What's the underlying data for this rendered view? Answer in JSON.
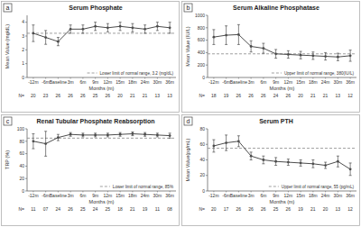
{
  "chart_data": [
    {
      "type": "line",
      "panel_label": "a",
      "title": "Serum Phosphate",
      "y_label": "Mean Value (mg/dL)",
      "x_label": "Months (m)",
      "categories": [
        "-12m",
        "-6m",
        "Baseline",
        "3m",
        "6m",
        "9m",
        "12m",
        "15m",
        "18m",
        "24m",
        "30m",
        "36m"
      ],
      "values": [
        3.2,
        2.9,
        2.6,
        3.5,
        3.5,
        3.7,
        3.6,
        3.7,
        3.6,
        3.5,
        3.7,
        3.6
      ],
      "errors": [
        0.6,
        0.5,
        0.3,
        0.3,
        0.3,
        0.3,
        0.3,
        0.3,
        0.3,
        0.3,
        0.3,
        0.4
      ],
      "color": "#4d4d4d",
      "marker": "circle",
      "ylim": [
        0,
        4.5
      ],
      "yticks": [
        0,
        1,
        2,
        3,
        4
      ],
      "grid": false,
      "reference_line": {
        "value": 3.2,
        "label": "Lower limit of normal range, 3.2 (mg/dL)"
      },
      "n_label": "N=",
      "n_values": [
        "20",
        "23",
        "26",
        "26",
        "26",
        "25",
        "26",
        "20",
        "21",
        "21",
        "13",
        "13"
      ]
    },
    {
      "type": "line",
      "panel_label": "b",
      "title": "Serum Alkaline Phosphatase",
      "y_label": "Mean Value (IU/L)",
      "x_label": "Months (m)",
      "categories": [
        "-12m",
        "-6m",
        "Baseline",
        "3m",
        "6m",
        "9m",
        "12m",
        "15m",
        "18m",
        "24m",
        "30m",
        "36m"
      ],
      "values": [
        650,
        680,
        690,
        500,
        470,
        380,
        370,
        360,
        350,
        340,
        330,
        350
      ],
      "errors": [
        120,
        150,
        160,
        90,
        80,
        70,
        60,
        60,
        60,
        60,
        60,
        90
      ],
      "color": "#4d4d4d",
      "marker": "circle",
      "ylim": [
        0,
        1000
      ],
      "yticks": [
        0,
        200,
        400,
        600,
        800,
        1000
      ],
      "grid": false,
      "reference_line": {
        "value": 380,
        "label": "Upper limit of normal range, 380(IU/L)"
      },
      "n_label": "N=",
      "n_values": [
        "18",
        "19",
        "26",
        "26",
        "26",
        "24",
        "26",
        "20",
        "21",
        "21",
        "13",
        "12"
      ]
    },
    {
      "type": "line",
      "panel_label": "c",
      "title": "Renal Tubular Phosphate Reabsorption",
      "y_label": "TRP (%)",
      "x_label": "Months (m)",
      "categories": [
        "-12m",
        "-6m",
        "Baseline",
        "3m",
        "6m",
        "9m",
        "12m",
        "15m",
        "18m",
        "24m",
        "30m",
        "36m"
      ],
      "values": [
        80,
        76,
        86,
        91,
        90,
        90,
        90,
        91,
        92,
        91,
        90,
        89
      ],
      "errors": [
        12,
        20,
        5,
        3,
        3,
        3,
        3,
        3,
        3,
        3,
        3,
        4
      ],
      "color": "#4d4d4d",
      "marker": "circle",
      "ylim": [
        0,
        100
      ],
      "yticks": [
        0,
        20,
        40,
        60,
        80,
        100
      ],
      "grid": false,
      "reference_line": {
        "value": 85,
        "label": "Lower limit of normal range, 85%"
      },
      "n_label": "N=",
      "n_values": [
        "11",
        "07",
        "24",
        "26",
        "25",
        "24",
        "25",
        "18",
        "21",
        "19",
        "11",
        "08"
      ]
    },
    {
      "type": "line",
      "panel_label": "d",
      "title": "Serum PTH",
      "y_label": "Mean Value(pg/mL)",
      "x_label": "Months (m)",
      "categories": [
        "-12m",
        "-6m",
        "Baseline",
        "3m",
        "6m",
        "9m",
        "12m",
        "15m",
        "18m",
        "24m",
        "30m",
        "36m"
      ],
      "values": [
        58,
        62,
        64,
        45,
        40,
        38,
        37,
        36,
        35,
        33,
        38,
        28
      ],
      "errors": [
        8,
        10,
        7,
        5,
        5,
        5,
        4,
        4,
        5,
        4,
        7,
        8
      ],
      "color": "#4d4d4d",
      "marker": "circle",
      "ylim": [
        0,
        80
      ],
      "yticks": [
        0,
        20,
        40,
        60,
        80
      ],
      "grid": false,
      "reference_line": {
        "value": 55,
        "label": "Upper limit of normal range, 55 (pg/mL)"
      },
      "n_label": "N=",
      "n_values": [
        "20",
        "17",
        "26",
        "26",
        "26",
        "25",
        "26",
        "19",
        "21",
        "20",
        "13",
        "12"
      ]
    }
  ]
}
